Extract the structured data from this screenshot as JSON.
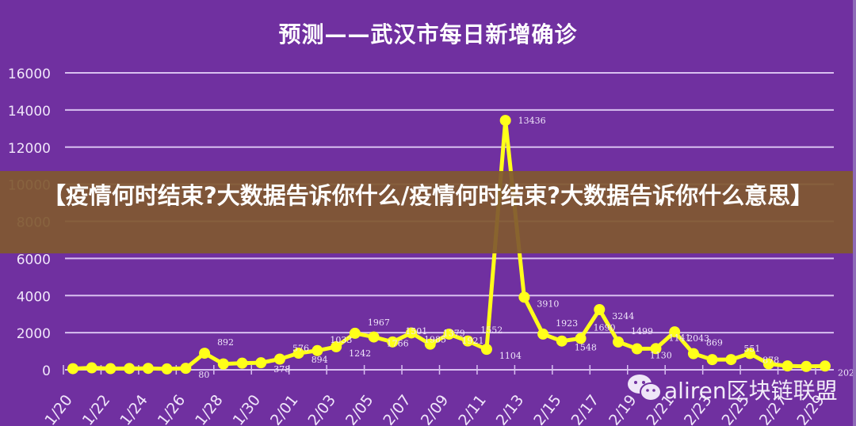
{
  "title": "预测——武汉市每日新增确诊",
  "banner": {
    "text": "【疫情何时结束?大数据告诉你什么/疫情何时结束?大数据告诉你什么意思】",
    "bg_color": "#805830"
  },
  "watermark": {
    "icon": "wechat-icon",
    "text": "aliren区块链联盟"
  },
  "colors": {
    "background": "#7030a0",
    "line": "#ffff1a",
    "gridline": "#d8c0f0",
    "text": "#f0e6fa"
  },
  "chart_data": {
    "type": "line",
    "title": "预测——武汉市每日新增确诊",
    "xlabel": "",
    "ylabel": "",
    "ylim": [
      0,
      16000
    ],
    "yticks": [
      0,
      2000,
      4000,
      6000,
      8000,
      10000,
      12000,
      14000,
      16000
    ],
    "grid": true,
    "legend": "none",
    "xtick_labels": [
      "1/20",
      "1/22",
      "1/24",
      "1/26",
      "1/28",
      "1/30",
      "2/01",
      "2/03",
      "2/05",
      "2/07",
      "2/09",
      "2/11",
      "2/13",
      "2/15",
      "2/17",
      "2/19",
      "2/21",
      "2/23",
      "2/25",
      "2/27",
      "2/29"
    ],
    "categories": [
      "1/20",
      "1/21",
      "1/22",
      "1/23",
      "1/24",
      "1/25",
      "1/26",
      "1/27",
      "1/28",
      "1/29",
      "1/30",
      "1/31",
      "2/01",
      "2/02",
      "2/03",
      "2/04",
      "2/05",
      "2/06",
      "2/07",
      "2/08",
      "2/09",
      "2/10",
      "2/11",
      "2/12",
      "2/13",
      "2/14",
      "2/15",
      "2/16",
      "2/17",
      "2/18",
      "2/19",
      "2/20",
      "2/21",
      "2/22",
      "2/23",
      "2/24",
      "2/25",
      "2/26",
      "2/27",
      "2/28",
      "2/29"
    ],
    "series": [
      {
        "name": "武汉市每日新增确诊",
        "values": [
          60,
          105,
          62,
          70,
          77,
          46,
          80,
          892,
          315,
          356,
          378,
          576,
          894,
          1033,
          1242,
          1967,
          1766,
          1501,
          1985,
          1379,
          1921,
          1552,
          1104,
          13436,
          3910,
          1923,
          1548,
          1690,
          3244,
          1499,
          1130,
          1141,
          2043,
          869,
          548,
          551,
          878,
          320,
          208,
          179,
          202
        ],
        "data_labels": [
          "",
          "",
          "",
          "",
          "",
          "",
          "80",
          "892",
          "",
          "",
          "378",
          "576",
          "894",
          "1033",
          "1242",
          "1967",
          "1766",
          "1501",
          "1985",
          "1379",
          "1921",
          "1552",
          "1104",
          "13436",
          "3910",
          "1923",
          "1548",
          "1690",
          "3244",
          "1499",
          "1130",
          "1141",
          "2043",
          "869",
          "",
          "551",
          "878",
          "",
          "",
          "",
          "202"
        ]
      }
    ]
  }
}
